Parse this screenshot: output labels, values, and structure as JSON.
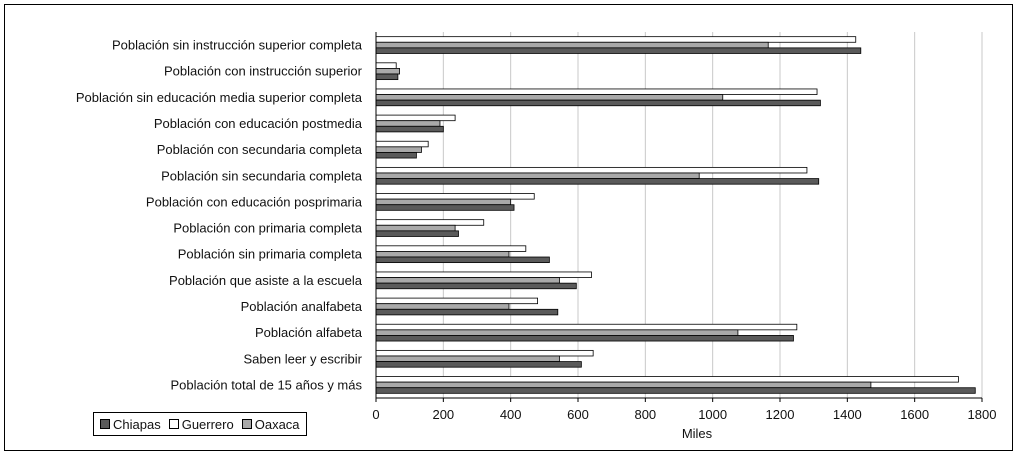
{
  "chart_data": {
    "type": "bar",
    "orientation": "horizontal",
    "categories": [
      "Población sin instrucción superior completa",
      "Población con instrucción superior",
      "Población sin educación media superior completa",
      "Población con educación postmedia",
      "Población con secundaria completa",
      "Población sin secundaria completa",
      "Población con educación posprimaria",
      "Población con primaria completa",
      "Población sin primaria completa",
      "Población que asiste a la escuela",
      "Población analfabeta",
      "Población alfabeta",
      "Saben leer y escribir",
      "Población total de 15 años y más"
    ],
    "series": [
      {
        "name": "Chiapas",
        "color": "#5a5a5a",
        "values": [
          1440,
          65,
          1320,
          200,
          120,
          1315,
          410,
          245,
          515,
          595,
          540,
          1240,
          610,
          1780
        ]
      },
      {
        "name": "Guerrero",
        "color": "#ffffff",
        "values": [
          1425,
          60,
          1310,
          235,
          155,
          1280,
          470,
          320,
          445,
          640,
          480,
          1250,
          645,
          1730
        ]
      },
      {
        "name": "Oaxaca",
        "color": "#a9a9a9",
        "values": [
          1165,
          70,
          1030,
          190,
          135,
          960,
          400,
          235,
          395,
          545,
          395,
          1075,
          545,
          1470
        ]
      }
    ],
    "xlabel": "Miles",
    "ylabel": "",
    "xlim": [
      0,
      1800
    ],
    "xticks": [
      0,
      200,
      400,
      600,
      800,
      1000,
      1200,
      1400,
      1600,
      1800
    ],
    "grid": true,
    "legend_position": "bottom-left"
  },
  "legend": {
    "items": [
      {
        "label": "Chiapas",
        "color": "#5a5a5a"
      },
      {
        "label": "Guerrero",
        "color": "#ffffff"
      },
      {
        "label": "Oaxaca",
        "color": "#a9a9a9"
      }
    ]
  }
}
